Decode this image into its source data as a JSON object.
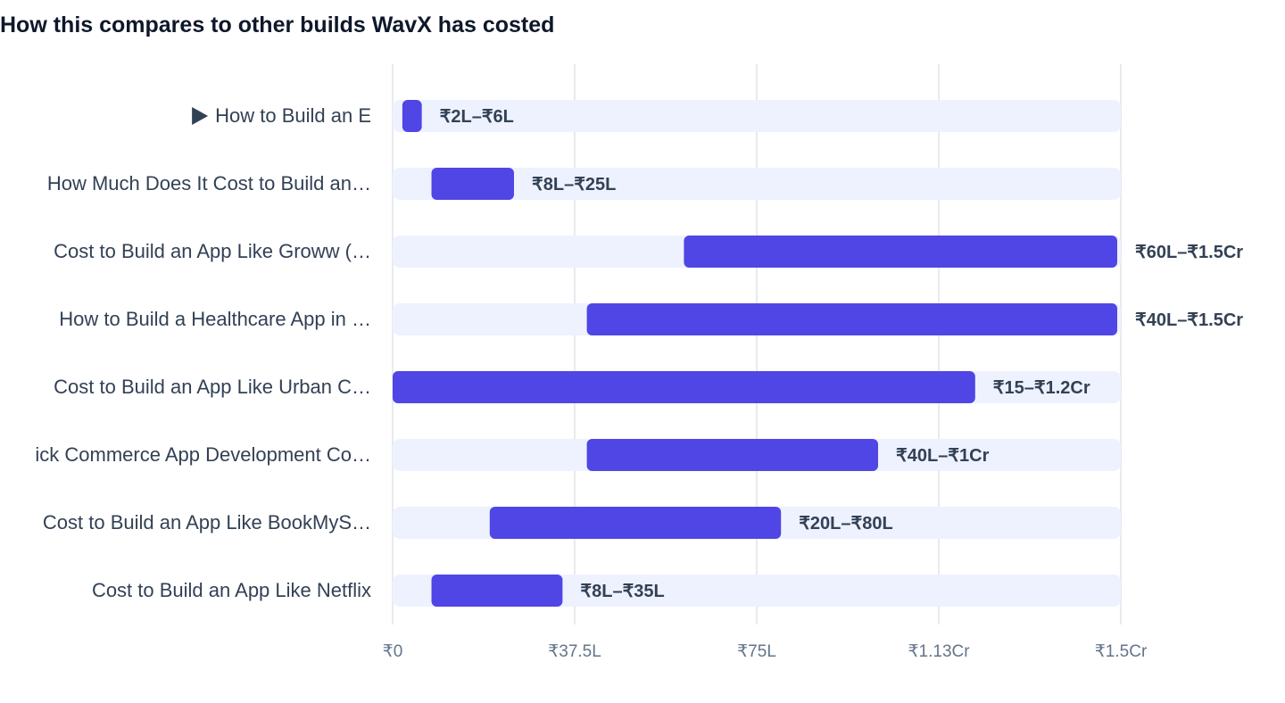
{
  "title": "How this compares to other builds WavX has costed",
  "colors": {
    "bar": "#4f46e5",
    "track": "#eef2ff",
    "grid": "#e2e4ea",
    "category_text": "#334155",
    "value_text": "#334155",
    "tick_text": "#64748b",
    "marker": "#334155"
  },
  "chart_data": {
    "type": "bar",
    "orientation": "horizontal",
    "style": "range",
    "categories": [
      "How to Build an E",
      "How Much Does It Cost to Build an…",
      "Cost to Build an App Like Groww (…",
      "How to Build a Healthcare App in …",
      "Cost to Build an App Like Urban C…",
      "ick Commerce App Development Co…",
      "Cost to Build an App Like BookMyS…",
      "Cost to Build an App Like Netflix"
    ],
    "ranges": [
      [
        0.02,
        0.06
      ],
      [
        0.08,
        0.25
      ],
      [
        0.6,
        1.5
      ],
      [
        0.4,
        1.5
      ],
      [
        0.0,
        1.2
      ],
      [
        0.4,
        1.0
      ],
      [
        0.2,
        0.8
      ],
      [
        0.08,
        0.35
      ]
    ],
    "value_labels": [
      "₹2L–₹6L",
      "₹8L–₹25L",
      "₹60L–₹1.5Cr",
      "₹40L–₹1.5Cr",
      "₹15–₹1.2Cr",
      "₹40L–₹1Cr",
      "₹20L–₹80L",
      "₹8L–₹35L"
    ],
    "highlighted_index": 0,
    "x_unit": "Crore INR",
    "xlim": [
      0,
      1.5
    ],
    "xticks": [
      0,
      0.375,
      0.75,
      1.125,
      1.5
    ],
    "xtick_labels": [
      "₹0",
      "₹37.5L",
      "₹75L",
      "₹1.13Cr",
      "₹1.5Cr"
    ],
    "grid": true,
    "legend": "none"
  }
}
